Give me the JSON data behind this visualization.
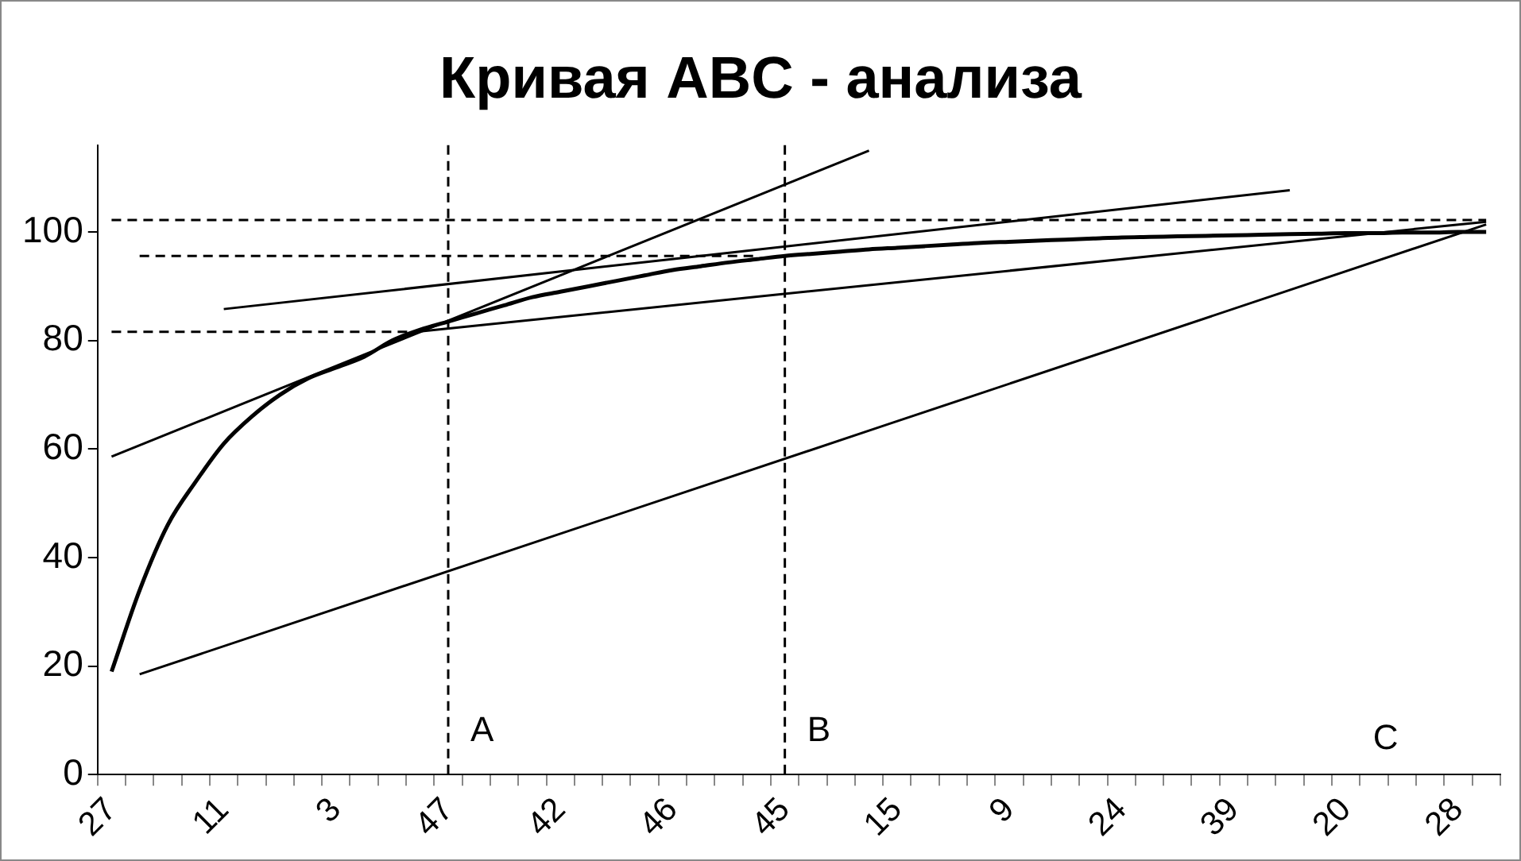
{
  "chart_data": {
    "type": "line",
    "title": "Кривая ABC - анализа",
    "categories": [
      "27",
      null,
      null,
      null,
      "11",
      null,
      null,
      null,
      "3",
      null,
      null,
      null,
      "47",
      null,
      null,
      null,
      "42",
      null,
      null,
      null,
      "46",
      null,
      null,
      null,
      "45",
      null,
      null,
      null,
      "15",
      null,
      null,
      null,
      "9",
      null,
      null,
      null,
      "24",
      null,
      null,
      null,
      "39",
      null,
      null,
      null,
      "20",
      null,
      null,
      null,
      "28",
      null
    ],
    "series": [
      {
        "color": "#000000",
        "values": [
          19,
          34,
          46,
          54,
          61,
          66,
          70,
          73,
          75,
          77,
          80,
          82,
          83.5,
          85,
          86.5,
          88,
          89,
          90,
          91,
          92,
          93,
          93.7,
          94.4,
          95,
          95.6,
          96,
          96.4,
          96.8,
          97.1,
          97.4,
          97.7,
          98,
          98.2,
          98.4,
          98.6,
          98.8,
          99,
          99.1,
          99.2,
          99.3,
          99.4,
          99.5,
          99.6,
          99.7,
          99.8,
          99.8,
          99.9,
          99.9,
          100,
          100
        ]
      },
      {
        "color": "#000000",
        "values": [
          58.6,
          null,
          null,
          null,
          null,
          null,
          null,
          null,
          null,
          null,
          null,
          null,
          null,
          null,
          null,
          null,
          null,
          null,
          null,
          null,
          null,
          null,
          null,
          null,
          null,
          null,
          null,
          115,
          null,
          null,
          null,
          null,
          null,
          null,
          null,
          null,
          null,
          null,
          null,
          null,
          null,
          null,
          null,
          null,
          null,
          null,
          null,
          null,
          null,
          null
        ]
      },
      {
        "color": "#000000",
        "values": [
          null,
          null,
          null,
          null,
          85.8,
          null,
          null,
          null,
          null,
          null,
          null,
          null,
          null,
          null,
          null,
          null,
          null,
          null,
          null,
          null,
          null,
          null,
          null,
          null,
          null,
          null,
          null,
          null,
          null,
          null,
          null,
          null,
          null,
          null,
          null,
          null,
          null,
          null,
          null,
          null,
          null,
          null,
          107.7,
          null,
          null,
          null,
          null,
          null,
          null,
          null
        ]
      },
      {
        "color": "#000000",
        "values": [
          null,
          null,
          null,
          null,
          null,
          null,
          null,
          null,
          null,
          null,
          null,
          81.7,
          null,
          null,
          null,
          null,
          null,
          null,
          null,
          null,
          null,
          null,
          null,
          null,
          null,
          null,
          null,
          null,
          null,
          null,
          null,
          null,
          null,
          null,
          null,
          null,
          null,
          null,
          null,
          null,
          null,
          null,
          null,
          null,
          null,
          null,
          null,
          null,
          null,
          101.9
        ]
      },
      {
        "color": "#000000",
        "values": [
          null,
          18.5,
          null,
          null,
          null,
          null,
          null,
          null,
          null,
          null,
          null,
          null,
          null,
          null,
          null,
          null,
          null,
          null,
          null,
          null,
          null,
          null,
          null,
          null,
          null,
          null,
          null,
          null,
          null,
          null,
          null,
          null,
          null,
          null,
          null,
          null,
          null,
          null,
          null,
          null,
          null,
          null,
          null,
          null,
          null,
          null,
          null,
          null,
          null,
          101.4
        ]
      },
      {
        "color": "#000000",
        "line_style": "dashed",
        "values": [
          81.6,
          null,
          null,
          null,
          null,
          null,
          null,
          null,
          null,
          null,
          null,
          81.6,
          null,
          null,
          null,
          null,
          null,
          null,
          null,
          null,
          null,
          null,
          null,
          null,
          null,
          null,
          null,
          null,
          null,
          null,
          null,
          null,
          null,
          null,
          null,
          null,
          null,
          null,
          null,
          null,
          null,
          null,
          null,
          null,
          null,
          null,
          null,
          null,
          null,
          null
        ]
      },
      {
        "color": "#000000",
        "line_style": "dashed",
        "values": [
          null,
          95.6,
          null,
          null,
          null,
          null,
          null,
          null,
          null,
          null,
          null,
          null,
          null,
          null,
          null,
          null,
          null,
          null,
          null,
          null,
          null,
          null,
          null,
          95.6,
          null,
          null,
          null,
          null,
          null,
          null,
          null,
          null,
          null,
          null,
          null,
          null,
          null,
          null,
          null,
          null,
          null,
          null,
          null,
          null,
          null,
          null,
          null,
          null,
          null,
          null
        ]
      },
      {
        "color": "#000000",
        "line_style": "dashed",
        "values": [
          102.2,
          null,
          null,
          null,
          null,
          null,
          null,
          null,
          null,
          null,
          null,
          null,
          null,
          null,
          null,
          null,
          null,
          null,
          null,
          null,
          null,
          null,
          null,
          null,
          null,
          null,
          null,
          null,
          null,
          null,
          null,
          null,
          null,
          null,
          null,
          null,
          null,
          null,
          null,
          null,
          null,
          null,
          null,
          null,
          null,
          null,
          null,
          null,
          null,
          102.2
        ]
      }
    ],
    "ylim": [
      0,
      116
    ],
    "yticks": [
      0,
      20,
      40,
      60,
      80,
      100
    ],
    "ref_lines": [
      {
        "axis": "x",
        "value": "47",
        "line_style": "dashed",
        "color": "#000000"
      },
      {
        "axis": "x",
        "value": "45",
        "line_style": "dashed",
        "color": "#000000"
      }
    ],
    "annotations": [
      {
        "text": "A",
        "x": "47",
        "y": 8
      },
      {
        "text": "B",
        "x": "45",
        "y": 8
      },
      "C"
    ],
    "grid": false,
    "legend": false,
    "marker": "none"
  }
}
